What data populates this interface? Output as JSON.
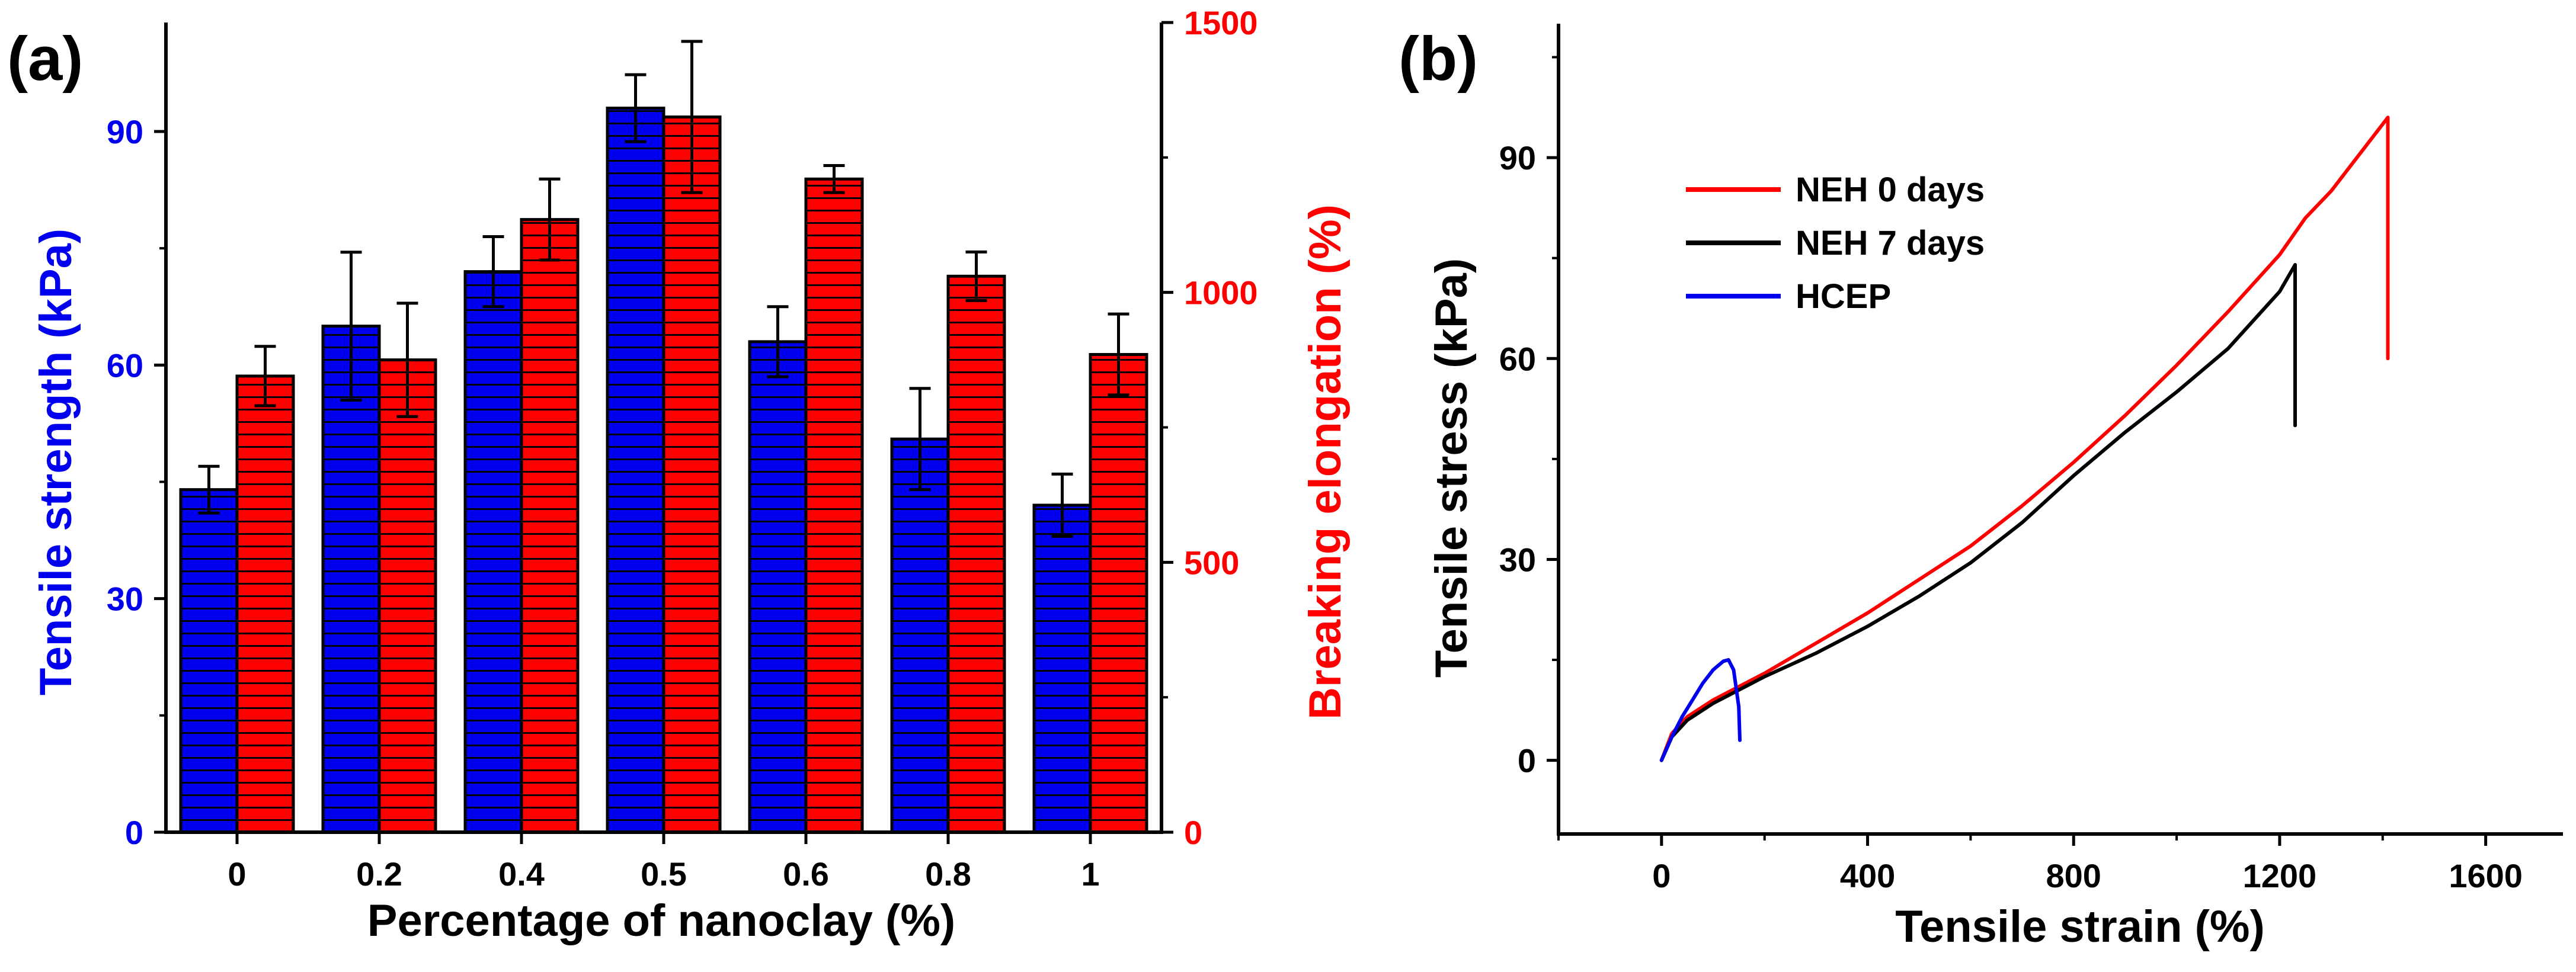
{
  "colors": {
    "blue": "#0000ee",
    "red": "#ff0000",
    "black": "#000000"
  },
  "chart_data": [
    {
      "panel": "(a)",
      "type": "bar",
      "categories": [
        "0",
        "0.2",
        "0.4",
        "0.5",
        "0.6",
        "0.8",
        "1"
      ],
      "xlabel": "Percentage of nanoclay (%)",
      "series": [
        {
          "name": "Tensile strength",
          "axis": "left",
          "color": "#0000ee",
          "values": [
            44,
            65,
            72,
            93,
            63,
            50.5,
            42
          ],
          "errors": [
            3,
            9.5,
            4.5,
            4.3,
            4.5,
            6.5,
            4
          ]
        },
        {
          "name": "Breaking elongation",
          "axis": "right",
          "color": "#ff0000",
          "values": [
            845,
            875,
            1135,
            1325,
            1210,
            1030,
            885
          ],
          "errors": [
            55,
            105,
            75,
            140,
            25,
            45,
            75
          ]
        }
      ],
      "ylabel_left": "Tensile strength (kPa)",
      "ylim_left": [
        0,
        104
      ],
      "yticks_left": [
        0,
        30,
        60,
        90
      ],
      "ylabel_right": "Breaking elongation (%)",
      "ylim_right": [
        0,
        1500
      ],
      "yticks_right": [
        0,
        500,
        1000,
        1500
      ]
    },
    {
      "panel": "(b)",
      "type": "line",
      "xlabel": "Tensile strain (%)",
      "ylabel": "Tensile stress (kPa)",
      "xlim": [
        -200,
        1750
      ],
      "ylim": [
        -11,
        110
      ],
      "xticks": [
        0,
        400,
        800,
        1200,
        1600
      ],
      "yticks": [
        0,
        30,
        60,
        90
      ],
      "legend_position": "top-left",
      "series": [
        {
          "name": "NEH 0 days",
          "color": "#ff0000",
          "x": [
            0,
            20,
            50,
            100,
            200,
            300,
            400,
            500,
            600,
            700,
            800,
            900,
            1000,
            1100,
            1200,
            1250,
            1300,
            1350,
            1390,
            1410,
            1410
          ],
          "y": [
            0,
            4,
            6.5,
            9,
            13,
            17.5,
            22,
            27,
            32,
            38,
            44.5,
            51.5,
            59,
            67,
            75.5,
            81,
            85,
            90,
            94,
            96,
            60
          ]
        },
        {
          "name": "NEH 7 days",
          "color": "#000000",
          "x": [
            0,
            20,
            50,
            100,
            200,
            300,
            400,
            500,
            600,
            700,
            800,
            900,
            1000,
            1100,
            1200,
            1230,
            1230
          ],
          "y": [
            0,
            3.5,
            6,
            8.5,
            12.5,
            16,
            20,
            24.5,
            29.5,
            35.5,
            42.5,
            49,
            55,
            61.5,
            70,
            74,
            50
          ]
        },
        {
          "name": "HCEP",
          "color": "#0000ee",
          "x": [
            0,
            20,
            40,
            60,
            80,
            100,
            120,
            130,
            140,
            150,
            152
          ],
          "y": [
            0,
            3.5,
            6.5,
            9,
            11.5,
            13.5,
            14.8,
            15,
            13.5,
            8,
            3
          ]
        }
      ]
    }
  ]
}
